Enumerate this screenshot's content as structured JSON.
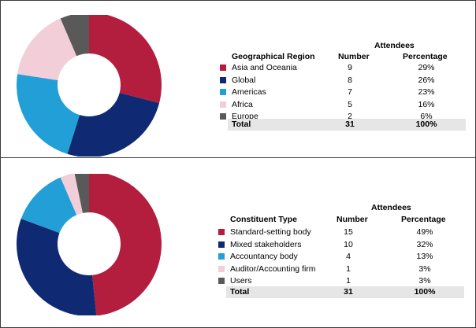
{
  "chart_data": [
    {
      "type": "donut",
      "title": "",
      "attendees_label": "Attendees",
      "category_header": "Geographical Region",
      "number_header": "Number",
      "percentage_header": "Percentage",
      "categories": [
        "Asia and Oceania",
        "Global",
        "Americas",
        "Africa",
        "Europe"
      ],
      "values": [
        9,
        8,
        7,
        5,
        2
      ],
      "percentages": [
        "29%",
        "26%",
        "23%",
        "16%",
        "6%"
      ],
      "colors": [
        "#b31e3f",
        "#0f2a73",
        "#219fd6",
        "#f2cfd8",
        "#595959"
      ],
      "total_label": "Total",
      "total_value": "31",
      "total_percentage": "100%"
    },
    {
      "type": "donut",
      "title": "",
      "attendees_label": "Attendees",
      "category_header": "Constituent Type",
      "number_header": "Number",
      "percentage_header": "Percentage",
      "categories": [
        "Standard-setting body",
        "Mixed stakeholders",
        "Accountancy body",
        "Auditor/Accounting firm",
        "Users"
      ],
      "values": [
        15,
        10,
        4,
        1,
        1
      ],
      "percentages": [
        "49%",
        "32%",
        "13%",
        "3%",
        "3%"
      ],
      "colors": [
        "#b31e3f",
        "#0f2a73",
        "#219fd6",
        "#f2cfd8",
        "#595959"
      ],
      "total_label": "Total",
      "total_value": "31",
      "total_percentage": "100%"
    }
  ]
}
